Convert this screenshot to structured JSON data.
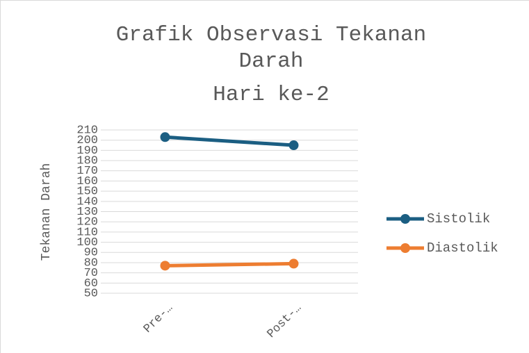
{
  "chart_data": {
    "type": "line",
    "title": "Grafik Observasi Tekanan Darah",
    "subtitle": "Hari ke-2",
    "y_label": "Tekanan Darah",
    "categories": [
      "Pre-…",
      "Post-…"
    ],
    "series": [
      {
        "name": "Sistolik",
        "color": "#1b5e82",
        "values": [
          203,
          195
        ]
      },
      {
        "name": "Diastolik",
        "color": "#ed7d31",
        "values": [
          77,
          79
        ]
      }
    ],
    "ylim": [
      50,
      210
    ],
    "yticks": [
      50,
      60,
      70,
      80,
      90,
      100,
      110,
      120,
      130,
      140,
      150,
      160,
      170,
      180,
      190,
      200,
      210
    ],
    "grid": true,
    "legend": "right"
  }
}
